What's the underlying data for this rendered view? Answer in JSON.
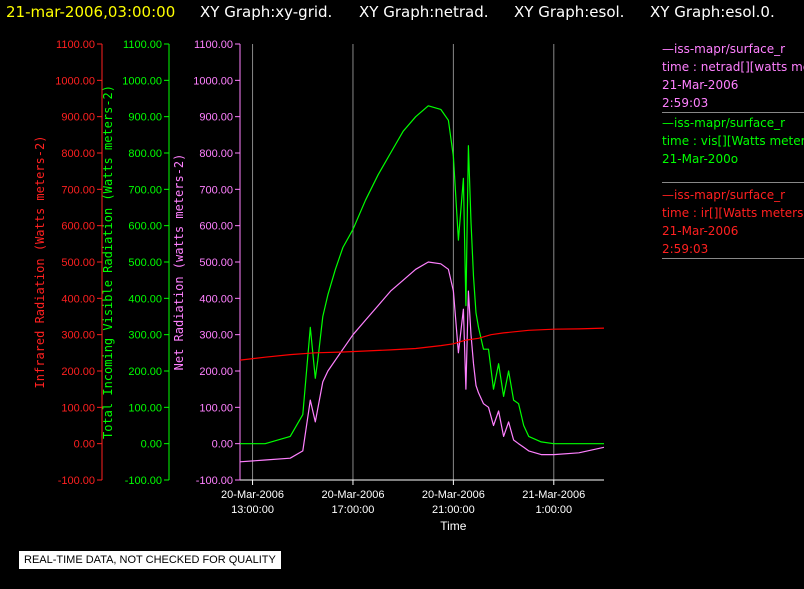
{
  "header": {
    "timestamp": "21-mar-2006,03:00:00",
    "graphs": [
      "XY Graph:xy-grid.",
      "XY Graph:netrad.",
      "XY Graph:esol.",
      "XY Graph:esol.0."
    ]
  },
  "legend": [
    {
      "line1": "—iss-mapr/surface_r",
      "line2": "time : netrad[][watts me",
      "line3": "21-Mar-2006",
      "line4": "2:59:03",
      "color": "#ff80ff"
    },
    {
      "line1": "—iss-mapr/surface_r",
      "line2": "time : vis[][Watts meter",
      "line3": "21-Mar-200o",
      "line4": "",
      "color": "#00ff00"
    },
    {
      "line1": "—iss-mapr/surface_r",
      "line2": "time : ir[][Watts meters",
      "line3": "21-Mar-2006",
      "line4": "2:59:03",
      "color": "#ff0000"
    }
  ],
  "footer": {
    "quality_note": "REAL-TIME DATA, NOT CHECKED FOR QUALITY"
  },
  "chart_data": {
    "type": "line",
    "xlabel": "Time",
    "x_ticks": [
      {
        "hour": 13,
        "line1": "20-Mar-2006",
        "line2": "13:00:00"
      },
      {
        "hour": 17,
        "line1": "20-Mar-2006",
        "line2": "17:00:00"
      },
      {
        "hour": 21,
        "line1": "20-Mar-2006",
        "line2": "21:00:00"
      },
      {
        "hour": 25,
        "line1": "21-Mar-2006",
        "line2": "1:00:00"
      }
    ],
    "xlim_hours_from_midnight_20mar": [
      12.5,
      27.0
    ],
    "ylim": [
      -100,
      1100
    ],
    "y_ticks": [
      "1100.00",
      "1000.00",
      "900.00",
      "800.00",
      "700.00",
      "600.00",
      "500.00",
      "400.00",
      "300.00",
      "200.00",
      "100.00",
      "0.00",
      "-100.00"
    ],
    "axes": [
      {
        "label": "Infrared Radiation (Watts meters-2)",
        "color": "#ff2020"
      },
      {
        "label": "Total Incoming Visible Radiation (Watts meters-2)",
        "color": "#00ff00"
      },
      {
        "label": "Net Radiation (watts meters-2)",
        "color": "#ff80ff"
      }
    ],
    "series": [
      {
        "name": "vis",
        "color": "#00ff00",
        "x": [
          12.5,
          13.5,
          14.5,
          15.0,
          15.3,
          15.5,
          15.6,
          15.8,
          16.0,
          16.3,
          16.6,
          17.0,
          17.5,
          18.0,
          18.5,
          19.0,
          19.5,
          20.0,
          20.5,
          20.8,
          21.0,
          21.2,
          21.4,
          21.5,
          21.6,
          21.7,
          21.8,
          21.9,
          22.0,
          22.2,
          22.4,
          22.6,
          22.8,
          23.0,
          23.2,
          23.4,
          23.6,
          23.8,
          24.0,
          24.5,
          25.0,
          26.0,
          27.0
        ],
        "y": [
          0,
          0,
          20,
          80,
          320,
          180,
          230,
          350,
          410,
          480,
          540,
          590,
          670,
          740,
          800,
          860,
          900,
          930,
          920,
          890,
          790,
          560,
          730,
          380,
          820,
          610,
          460,
          360,
          320,
          260,
          260,
          150,
          220,
          130,
          200,
          120,
          110,
          50,
          20,
          5,
          0,
          0,
          0
        ]
      },
      {
        "name": "netrad",
        "color": "#ff80ff",
        "x": [
          12.5,
          13.5,
          14.5,
          15.0,
          15.3,
          15.5,
          15.8,
          16.0,
          16.5,
          17.0,
          17.5,
          18.0,
          18.5,
          19.0,
          19.5,
          20.0,
          20.5,
          20.8,
          21.0,
          21.2,
          21.4,
          21.5,
          21.6,
          21.7,
          21.8,
          21.9,
          22.0,
          22.2,
          22.4,
          22.6,
          22.8,
          23.0,
          23.2,
          23.4,
          23.6,
          23.8,
          24.0,
          24.5,
          25.0,
          26.0,
          27.0
        ],
        "y": [
          -50,
          -45,
          -40,
          -20,
          120,
          60,
          170,
          200,
          250,
          300,
          340,
          380,
          420,
          450,
          480,
          500,
          495,
          480,
          420,
          250,
          370,
          150,
          420,
          300,
          220,
          160,
          140,
          110,
          100,
          50,
          90,
          20,
          60,
          10,
          0,
          -10,
          -20,
          -30,
          -30,
          -25,
          -10
        ]
      },
      {
        "name": "ir",
        "color": "#ff0000",
        "x": [
          12.5,
          13.5,
          14.5,
          15.5,
          16.5,
          17.5,
          18.5,
          19.5,
          20.5,
          21.0,
          21.5,
          22.0,
          22.5,
          23.0,
          24.0,
          25.0,
          26.0,
          27.0
        ],
        "y": [
          230,
          238,
          245,
          250,
          252,
          255,
          258,
          262,
          270,
          275,
          285,
          290,
          300,
          305,
          312,
          315,
          316,
          318
        ]
      }
    ]
  }
}
